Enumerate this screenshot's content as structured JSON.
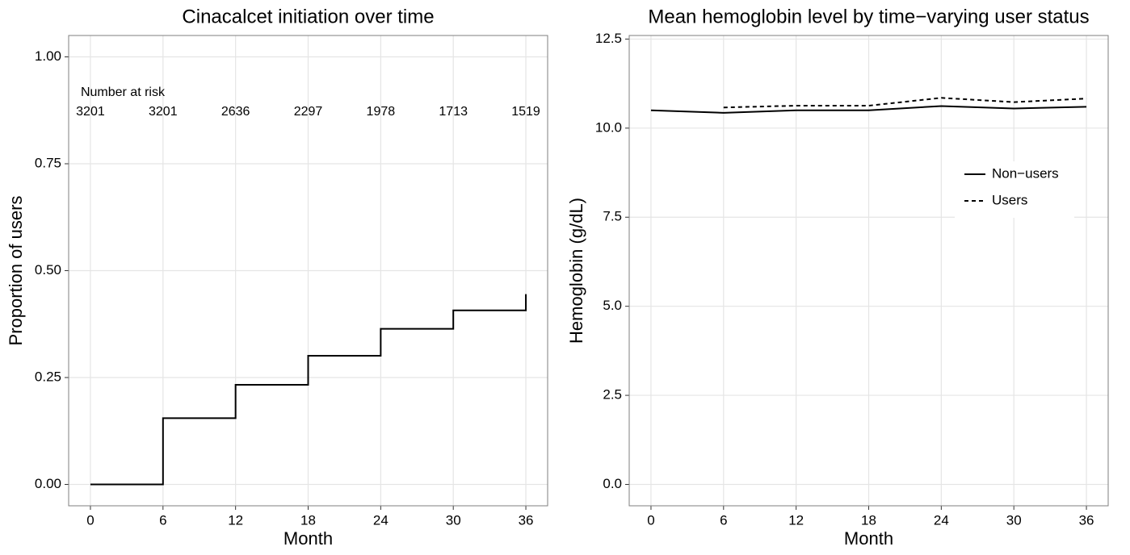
{
  "chart_data": [
    {
      "type": "step",
      "title": "Cinacalcet initiation over time",
      "x_label": "Month",
      "y_label": "Proportion of users",
      "x": [
        0,
        6,
        12,
        18,
        24,
        30,
        36
      ],
      "series": [
        {
          "name": "Proportion",
          "color": "#000000",
          "dash": "solid",
          "values": [
            0,
            0.155,
            0.233,
            0.301,
            0.364,
            0.407,
            0.445
          ]
        }
      ],
      "risk_table": {
        "label": "Number at risk",
        "x": [
          0,
          6,
          12,
          18,
          24,
          30,
          36
        ],
        "values": [
          3201,
          3201,
          2636,
          2297,
          1978,
          1713,
          1519
        ]
      },
      "xlim": [
        -1.8,
        37.8
      ],
      "xticks": [
        0,
        6,
        12,
        18,
        24,
        30,
        36
      ],
      "ylim": [
        -0.05,
        1.05
      ],
      "yticks": [
        {
          "value": 0,
          "label": "0.00"
        },
        0.25,
        {
          "value": 0.5,
          "label": "0.50"
        },
        0.75,
        {
          "value": 1,
          "label": "1.00"
        }
      ],
      "grid": true,
      "legend": false
    },
    {
      "type": "line",
      "title": "Mean hemoglobin level by time−varying user status",
      "x_label": "Month",
      "y_label": "Hemoglobin (g/dL)",
      "x": [
        0,
        6,
        12,
        18,
        24,
        30,
        36
      ],
      "series": [
        {
          "name": "Non−users",
          "color": "#000000",
          "dash": "solid",
          "values": [
            10.5,
            10.43,
            10.5,
            10.5,
            10.62,
            10.55,
            10.6
          ]
        },
        {
          "name": "Users",
          "color": "#000000",
          "dash": "dashed",
          "values": [
            null,
            10.58,
            10.63,
            10.63,
            10.85,
            10.73,
            10.83
          ]
        }
      ],
      "xlim": [
        -1.8,
        37.8
      ],
      "xticks": [
        0,
        6,
        12,
        18,
        24,
        30,
        36
      ],
      "ylim": [
        -0.6,
        12.6
      ],
      "yticks": [
        {
          "value": 0,
          "label": "0.0"
        },
        2.5,
        {
          "value": 5,
          "label": "5.0"
        },
        7.5,
        {
          "value": 10,
          "label": "10.0"
        },
        12.5
      ],
      "grid": true,
      "legend": "right"
    }
  ]
}
